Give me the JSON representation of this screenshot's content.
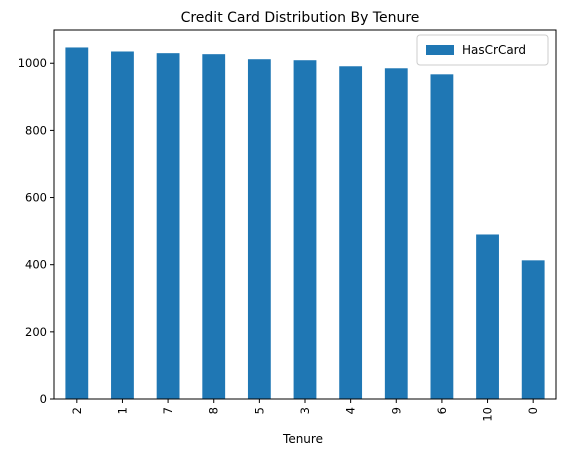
{
  "chart_data": {
    "type": "bar",
    "title": "Credit Card Distribution By Tenure",
    "xlabel": "Tenure",
    "ylabel": "",
    "categories": [
      "2",
      "1",
      "7",
      "8",
      "5",
      "3",
      "4",
      "9",
      "6",
      "10",
      "0"
    ],
    "series": [
      {
        "name": "HasCrCard",
        "values": [
          1047,
          1035,
          1030,
          1027,
          1012,
          1009,
          991,
          985,
          967,
          490,
          413
        ],
        "color": "#1f77b4"
      }
    ],
    "ylim": [
      0,
      1099
    ],
    "yticks": [
      0,
      200,
      400,
      600,
      800,
      1000
    ],
    "grid": false,
    "legend": "top-right",
    "xtick_rotation": 90
  }
}
